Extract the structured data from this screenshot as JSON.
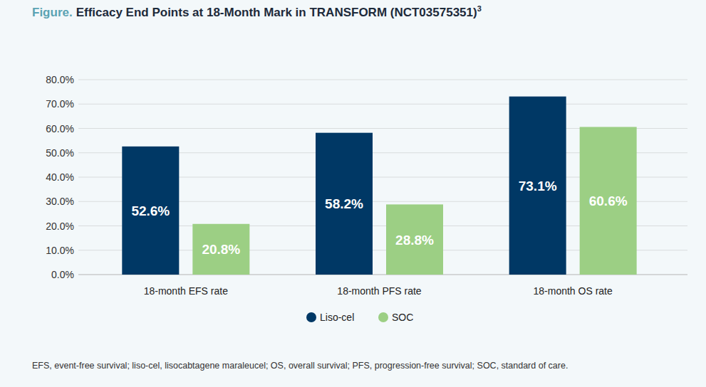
{
  "chart_data": {
    "type": "bar",
    "title_label": "Figure.",
    "title": "Efficacy End Points at 18-Month Mark in TRANSFORM (NCT03575351)",
    "title_superscript": "3",
    "footnote": "EFS, event-free survival; liso-cel, lisocabtagene maraleucel; OS, overall survival; PFS, progression-free survival; SOC, standard of care.",
    "categories": [
      "18-month EFS rate",
      "18-month PFS rate",
      "18-month OS rate"
    ],
    "series": [
      {
        "name": "Liso-cel",
        "color": "#003865",
        "values": [
          52.6,
          58.2,
          73.1
        ],
        "value_labels": [
          "52.6%",
          "58.2%",
          "73.1%"
        ]
      },
      {
        "name": "SOC",
        "color": "#9ccf84",
        "values": [
          20.8,
          28.8,
          60.6
        ],
        "value_labels": [
          "20.8%",
          "28.8%",
          "60.6%"
        ]
      }
    ],
    "ylim": [
      0,
      80
    ],
    "yticks": [
      {
        "value": 0,
        "label": "0.0%"
      },
      {
        "value": 10,
        "label": "10.0%"
      },
      {
        "value": 20,
        "label": "20.0%"
      },
      {
        "value": 30,
        "label": "30.0%"
      },
      {
        "value": 40,
        "label": "40.0%"
      },
      {
        "value": 50,
        "label": "50.0%"
      },
      {
        "value": 60,
        "label": "60.0%"
      },
      {
        "value": 70,
        "label": "70.0%"
      },
      {
        "value": 80,
        "label": "80.0%"
      }
    ],
    "grid": true,
    "data_labels": true,
    "legend": "bottom"
  }
}
